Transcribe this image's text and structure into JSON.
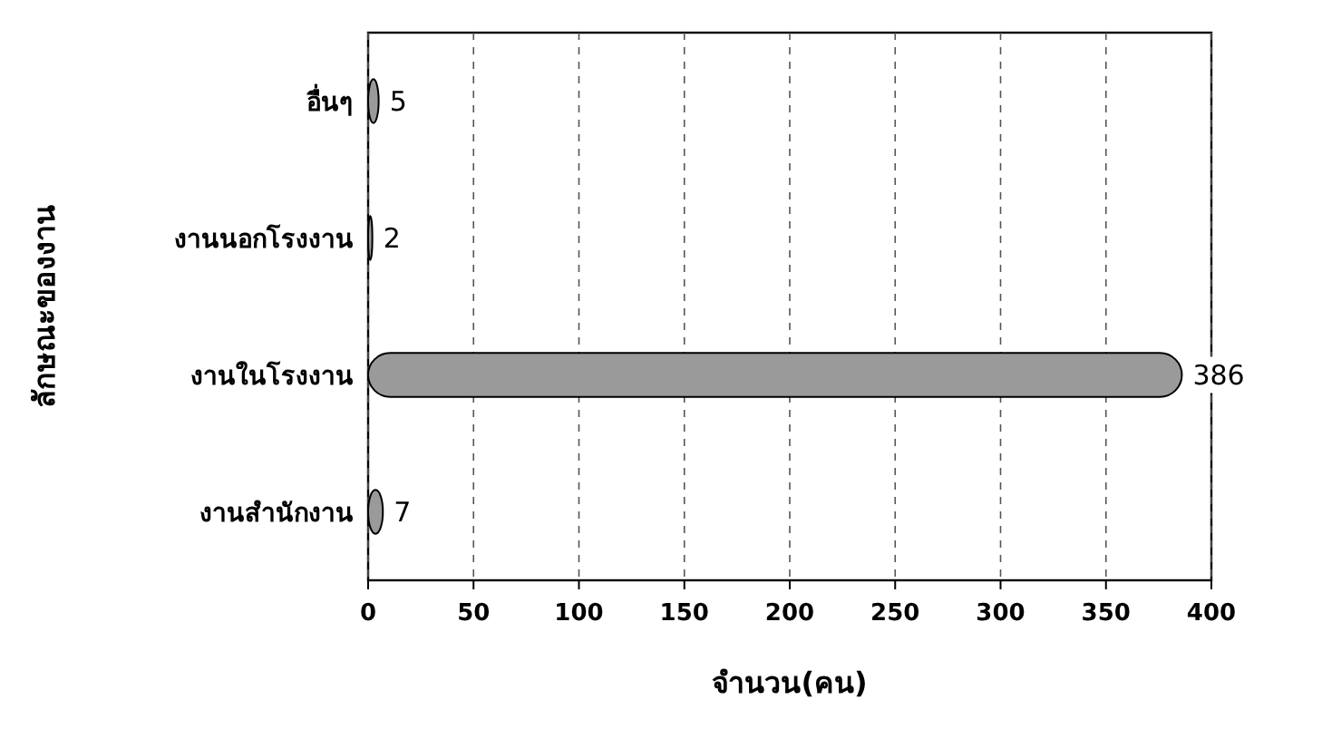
{
  "chart_data": {
    "type": "bar",
    "orientation": "horizontal",
    "categories": [
      "อื่นๆ",
      "งานนอกโรงงาน",
      "งานในโรงงาน",
      "งานสำนักงาน"
    ],
    "values": [
      5,
      2,
      386,
      7
    ],
    "color": "#9a9a9a",
    "xlim": [
      0,
      400
    ],
    "xticks": [
      0,
      50,
      100,
      150,
      200,
      250,
      300,
      350,
      400
    ],
    "xlabel": "จำนวน(คน)",
    "ylabel": "ลักษณะของงาน",
    "grid": "x",
    "data_labels": true
  }
}
